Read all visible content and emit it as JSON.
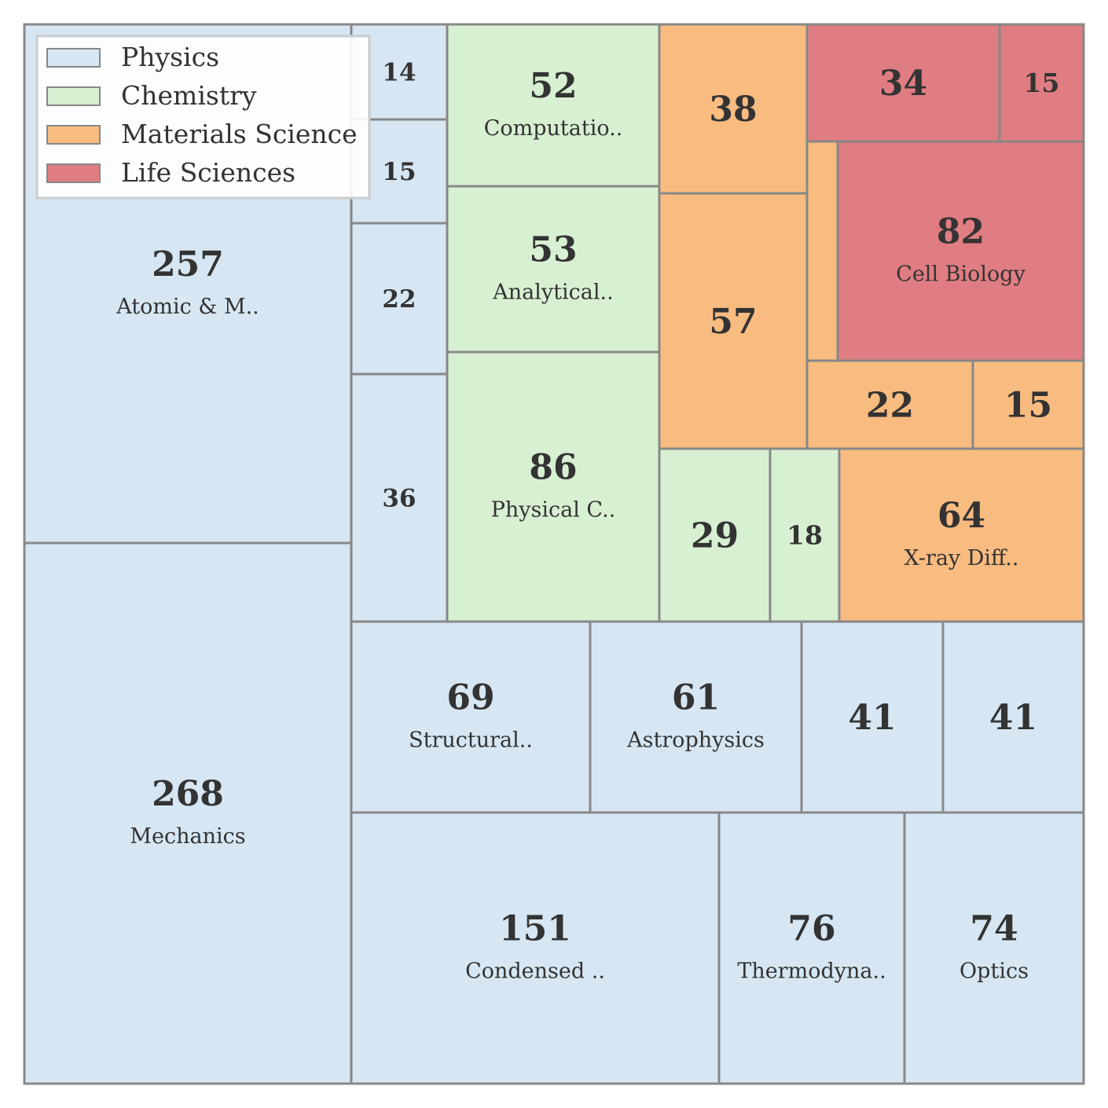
{
  "chart_data": {
    "type": "treemap",
    "colors": {
      "Physics": "#d6e6f3",
      "Chemistry": "#d8f0d2",
      "Materials Science": "#f8bb80",
      "Life Sciences": "#e07d82",
      "border": "#888888"
    },
    "legend": {
      "placement": "top-left",
      "entries": [
        "Physics",
        "Chemistry",
        "Materials Science",
        "Life Sciences"
      ]
    },
    "tiles": [
      {
        "value": 257,
        "label": "Atomic & M..",
        "group": "Physics"
      },
      {
        "value": 268,
        "label": "Mechanics",
        "group": "Physics"
      },
      {
        "value": 14,
        "label": "",
        "group": "Physics"
      },
      {
        "value": 15,
        "label": "",
        "group": "Physics"
      },
      {
        "value": 22,
        "label": "",
        "group": "Physics"
      },
      {
        "value": 36,
        "label": "",
        "group": "Physics"
      },
      {
        "value": 52,
        "label": "Computatio..",
        "group": "Chemistry"
      },
      {
        "value": 53,
        "label": "Analytical..",
        "group": "Chemistry"
      },
      {
        "value": 86,
        "label": "Physical C..",
        "group": "Chemistry"
      },
      {
        "value": 38,
        "label": "",
        "group": "Materials Science"
      },
      {
        "value": 57,
        "label": "",
        "group": "Materials Science"
      },
      {
        "value": 34,
        "label": "",
        "group": "Life Sciences"
      },
      {
        "value": 15,
        "label": "",
        "group": "Life Sciences"
      },
      {
        "value": null,
        "label": "",
        "group": "Materials Science"
      },
      {
        "value": 82,
        "label": "Cell Biology",
        "group": "Life Sciences"
      },
      {
        "value": 22,
        "label": "",
        "group": "Materials Science"
      },
      {
        "value": 15,
        "label": "",
        "group": "Materials Science"
      },
      {
        "value": 29,
        "label": "",
        "group": "Chemistry"
      },
      {
        "value": 18,
        "label": "",
        "group": "Chemistry"
      },
      {
        "value": 64,
        "label": "X-ray Diff..",
        "group": "Materials Science"
      },
      {
        "value": 69,
        "label": "Structural..",
        "group": "Physics"
      },
      {
        "value": 61,
        "label": "Astrophysics",
        "group": "Physics"
      },
      {
        "value": 41,
        "label": "",
        "group": "Physics"
      },
      {
        "value": 41,
        "label": "",
        "group": "Physics"
      },
      {
        "value": 151,
        "label": "Condensed ..",
        "group": "Physics"
      },
      {
        "value": 76,
        "label": "Thermodyna..",
        "group": "Physics"
      },
      {
        "value": 74,
        "label": "Optics",
        "group": "Physics"
      }
    ]
  }
}
